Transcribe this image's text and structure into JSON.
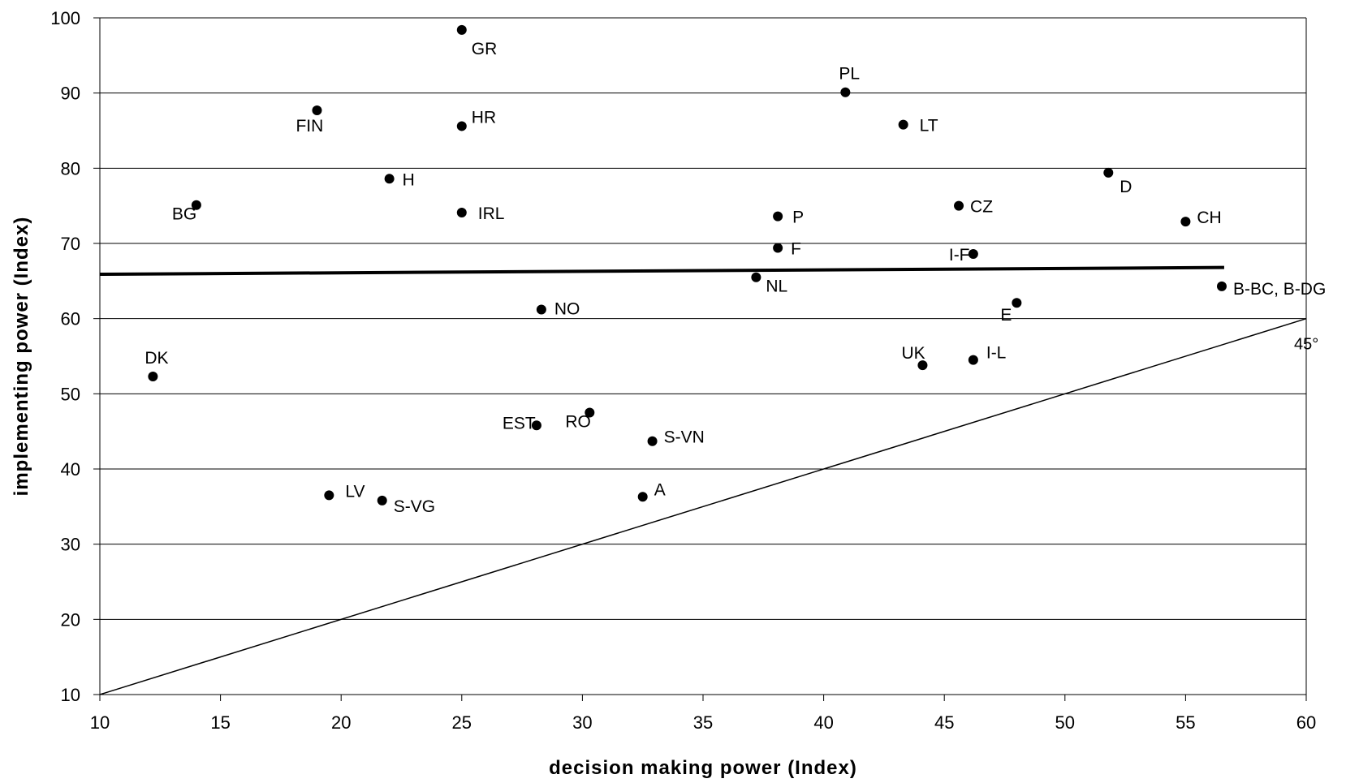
{
  "chart_data": {
    "type": "scatter",
    "title": "",
    "xlabel": "decision making power (Index)",
    "ylabel": "implementing power (Index)",
    "xlim": [
      10,
      60
    ],
    "ylim": [
      10,
      100
    ],
    "xticks": [
      10,
      15,
      20,
      25,
      30,
      35,
      40,
      45,
      50,
      55,
      60
    ],
    "yticks": [
      10,
      20,
      30,
      40,
      50,
      60,
      70,
      80,
      90,
      100
    ],
    "grid": "horizontal",
    "legend": "none",
    "point_color": "#000000",
    "points": [
      {
        "label": "GR",
        "x": 25.0,
        "y": 98.4
      },
      {
        "label": "PL",
        "x": 40.9,
        "y": 90.1
      },
      {
        "label": "FIN",
        "x": 19.0,
        "y": 87.7
      },
      {
        "label": "HR",
        "x": 25.0,
        "y": 85.6
      },
      {
        "label": "LT",
        "x": 43.3,
        "y": 85.8
      },
      {
        "label": "D",
        "x": 51.8,
        "y": 79.4
      },
      {
        "label": "H",
        "x": 22.0,
        "y": 78.6
      },
      {
        "label": "BG",
        "x": 14.0,
        "y": 75.1
      },
      {
        "label": "CZ",
        "x": 45.6,
        "y": 75.0
      },
      {
        "label": "IRL",
        "x": 25.0,
        "y": 74.1
      },
      {
        "label": "P",
        "x": 38.1,
        "y": 73.6
      },
      {
        "label": "CH",
        "x": 55.0,
        "y": 72.9
      },
      {
        "label": "F",
        "x": 38.1,
        "y": 69.4
      },
      {
        "label": "I-F",
        "x": 46.2,
        "y": 68.6
      },
      {
        "label": "NL",
        "x": 37.2,
        "y": 65.5
      },
      {
        "label": "B-BC, B-DG",
        "x": 56.5,
        "y": 64.3
      },
      {
        "label": "E",
        "x": 48.0,
        "y": 62.1
      },
      {
        "label": "NO",
        "x": 28.3,
        "y": 61.2
      },
      {
        "label": "I-L",
        "x": 46.2,
        "y": 54.5
      },
      {
        "label": "UK",
        "x": 44.1,
        "y": 53.8
      },
      {
        "label": "DK",
        "x": 12.2,
        "y": 52.3
      },
      {
        "label": "RO",
        "x": 30.3,
        "y": 47.5
      },
      {
        "label": "EST",
        "x": 28.1,
        "y": 45.8
      },
      {
        "label": "S-VN",
        "x": 32.9,
        "y": 43.7
      },
      {
        "label": "LV",
        "x": 19.5,
        "y": 36.5
      },
      {
        "label": "A",
        "x": 32.5,
        "y": 36.3
      },
      {
        "label": "S-VG",
        "x": 21.7,
        "y": 35.8
      }
    ],
    "trend_line": {
      "x": [
        10,
        56.6
      ],
      "y": [
        65.9,
        66.8
      ]
    },
    "reference_line": {
      "label": "45°",
      "x": [
        10,
        60
      ],
      "y": [
        10,
        60
      ]
    }
  }
}
